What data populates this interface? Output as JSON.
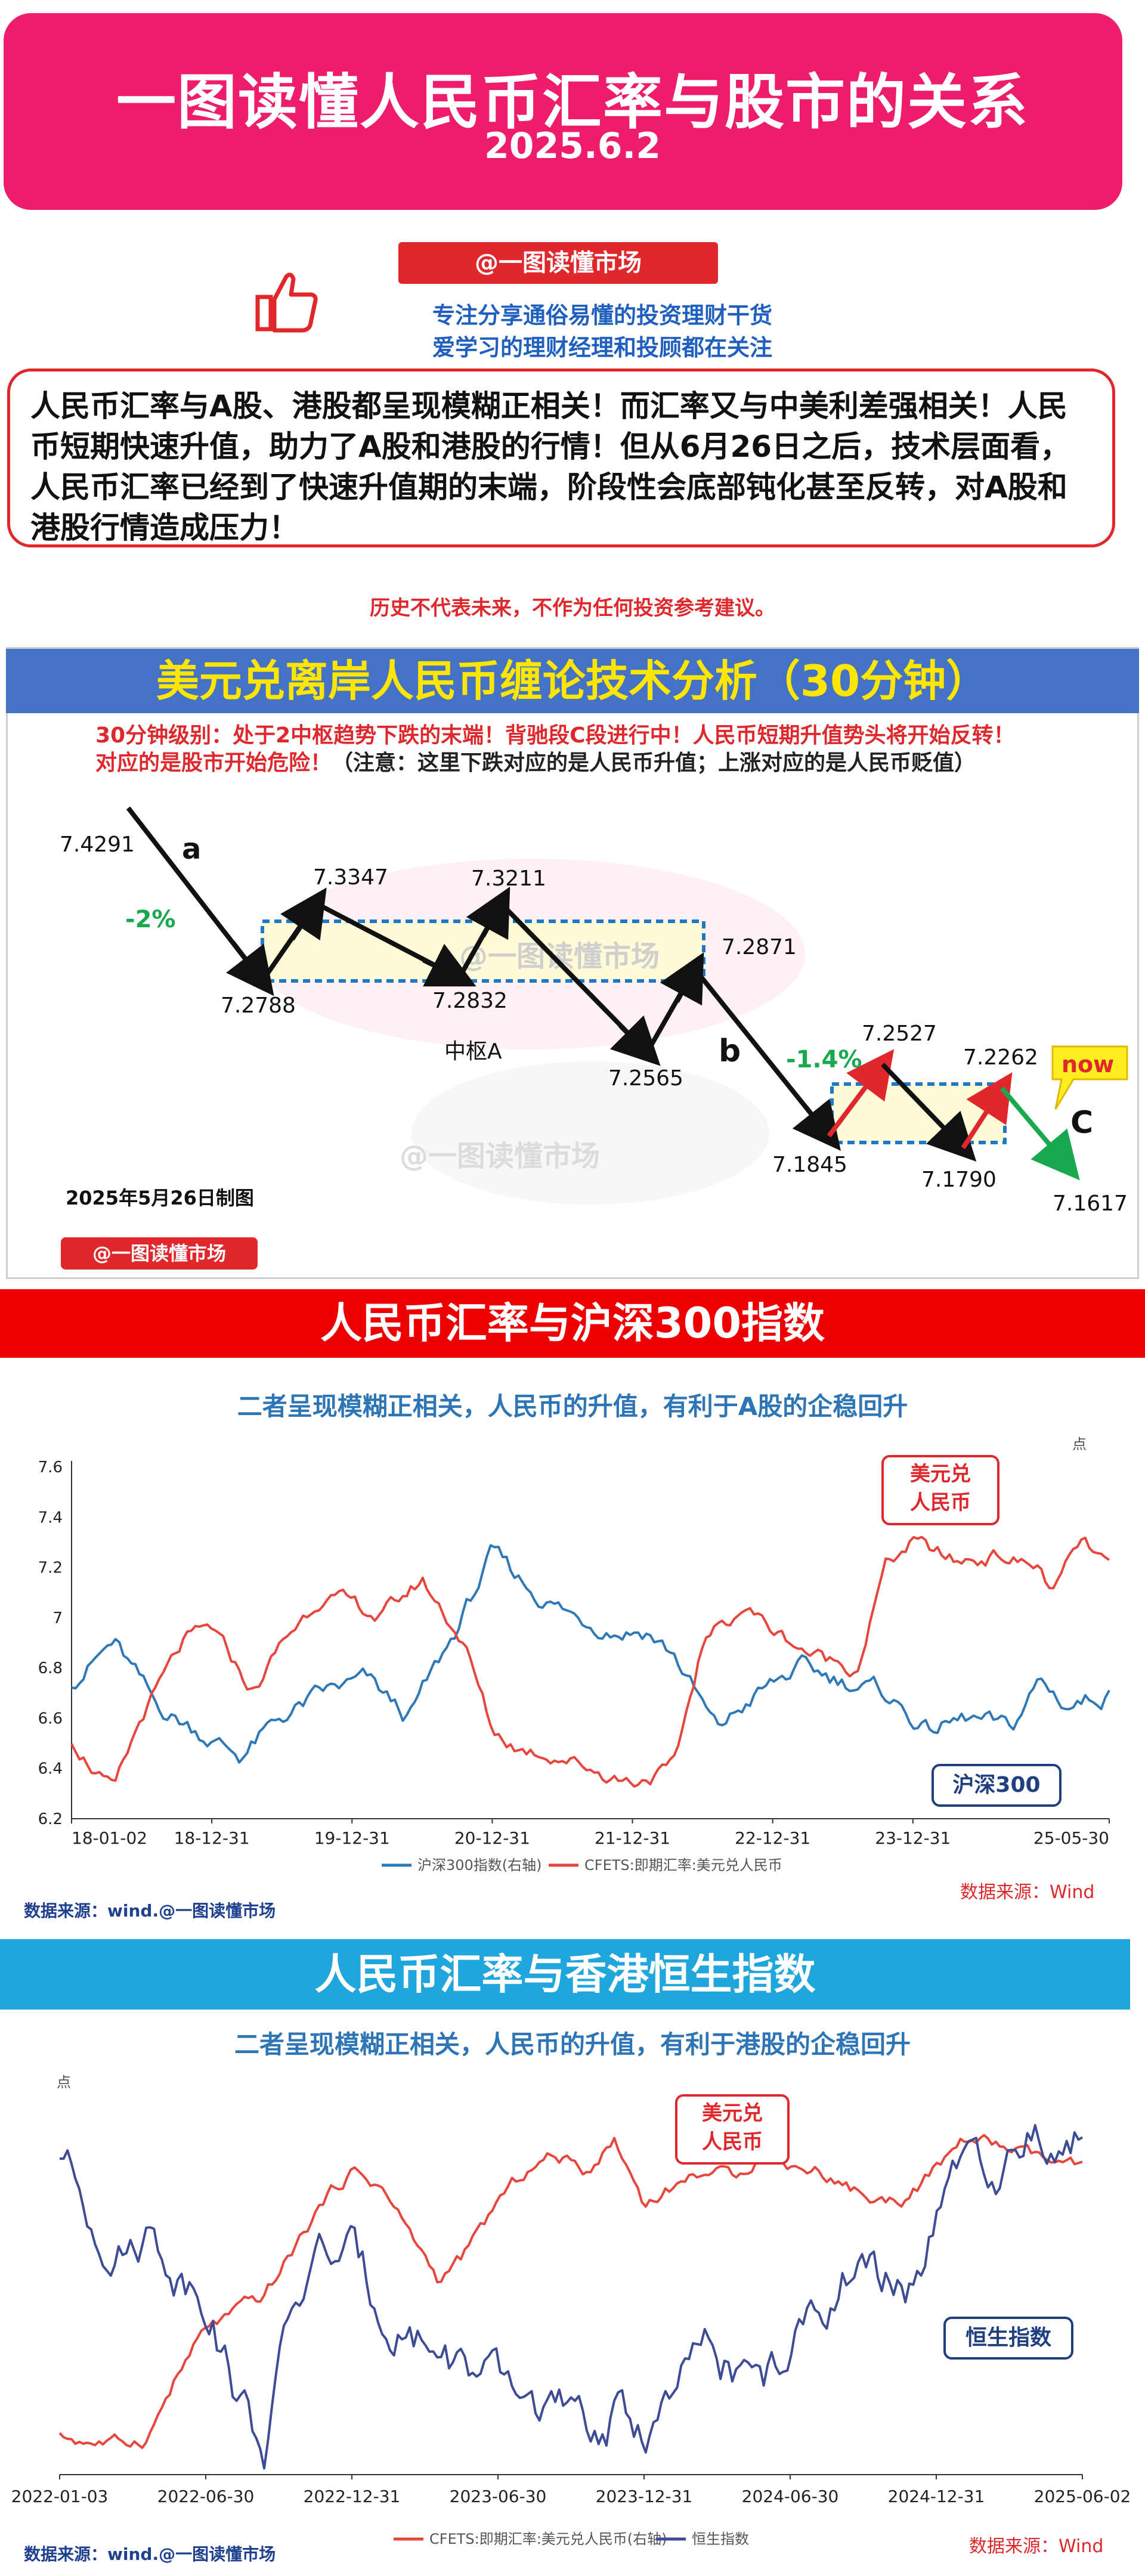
{
  "header": {
    "title": "一图读懂人民币汇率与股市的关系",
    "date": "2025.6.2"
  },
  "brand": {
    "label": "@一图读懂市场",
    "tagline1": "专注分享通俗易懂的投资理财干货",
    "tagline2": "爱学习的理财经理和投顾都在关注"
  },
  "intro": {
    "text": "人民币汇率与A股、港股都呈现模糊正相关！而汇率又与中美利差强相关！人民币短期快速升值，助力了A股和港股的行情！但从6月26日之后，技术层面看，人民币汇率已经到了快速升值期的末端，阶段性会底部钝化甚至反转，对A股和港股行情造成压力！"
  },
  "disclaimer": "历史不代表未来，不作为任何投资参考建议。",
  "section1": {
    "title": "美元兑离岸人民币缠论技术分析（30分钟）",
    "note1": "30分钟级别：处于2中枢趋势下跌的末端！背驰段C段进行中！人民币短期升值势头将开始反转！",
    "note2a": "对应的是股市开始危险！",
    "note2b": "（注意：这里下跌对应的是人民币升值；上涨对应的是人民币贬值）",
    "made_on": "2025年5月26日制图",
    "watermark": "@一图读懂市场",
    "labels": {
      "a": "a",
      "b": "b",
      "c": "C",
      "center_a": "中枢A",
      "now": "now",
      "pct1": "-2%",
      "pct2": "-1.4%"
    },
    "points": [
      "7.4291",
      "7.2788",
      "7.3347",
      "7.2832",
      "7.3211",
      "7.2565",
      "7.2871",
      "7.1845",
      "7.2527",
      "7.1790",
      "7.2262",
      "7.1617"
    ]
  },
  "section2": {
    "title": "人民币汇率与沪深300指数",
    "subtitle": "二者呈现模糊正相关，人民币的升值，有利于A股的企稳回升",
    "source_left": "数据来源：wind.@一图读懂市场",
    "source_right": "数据来源：Wind",
    "callout_usd": "美元兑\n人民币",
    "callout_idx": "沪深300",
    "unit": "点"
  },
  "section3": {
    "title": "人民币汇率与香港恒生指数",
    "subtitle": "二者呈现模糊正相关，人民币的升值，有利于港股的企稳回升",
    "source_left": "数据来源：wind.@一图读懂市场",
    "source_right": "数据来源：Wind",
    "callout_usd": "美元兑\n人民币",
    "callout_idx": "恒生指数",
    "unit": "点"
  },
  "colors": {
    "usd": "#e8463c",
    "csi": "#2e78b7",
    "hsi": "#3d4c94",
    "pink": "#ee1d6b"
  },
  "chart_data": [
    {
      "type": "line",
      "title": "人民币汇率与沪深300指数",
      "x_ticks": [
        "18-01-02",
        "18-12-31",
        "19-12-31",
        "20-12-31",
        "21-12-31",
        "22-12-31",
        "23-12-31",
        "25-05-30"
      ],
      "y_ticks": [
        "6.2",
        "6.4",
        "6.6",
        "6.8",
        "7",
        "7.2",
        "7.4",
        "7.6"
      ],
      "ylim": [
        6.2,
        7.6
      ],
      "legend": [
        "沪深300指数(右轴)",
        "CFETS:即期汇率:美元兑人民币"
      ],
      "series": [
        {
          "name": "CFETS:即期汇率:美元兑人民币",
          "x": [
            0,
            0.3,
            0.5,
            0.8,
            1,
            1.3,
            1.5,
            1.8,
            2,
            2.2,
            2.5,
            2.8,
            3,
            3.2,
            3.5,
            3.8,
            4,
            4.3,
            4.5,
            4.8,
            5,
            5.3,
            5.6,
            5.8,
            6,
            6.3,
            6.6,
            6.9,
            7,
            7.2,
            7.4
          ],
          "values": [
            6.52,
            6.3,
            6.6,
            6.9,
            6.95,
            6.7,
            6.9,
            7.1,
            7.05,
            7.0,
            7.15,
            6.9,
            6.55,
            6.48,
            6.45,
            6.38,
            6.35,
            6.4,
            6.9,
            7.05,
            6.95,
            6.85,
            6.8,
            7.2,
            7.3,
            7.22,
            7.25,
            7.2,
            7.1,
            7.3,
            7.2
          ]
        },
        {
          "name": "沪深300指数(右轴)",
          "x": [
            0,
            0.3,
            0.6,
            0.9,
            1.2,
            1.5,
            1.8,
            2.1,
            2.4,
            2.7,
            3,
            3.3,
            3.6,
            3.9,
            4.1,
            4.3,
            4.6,
            4.9,
            5.2,
            5.5,
            5.8,
            6.1,
            6.4,
            6.7,
            6.9,
            7.1,
            7.4
          ],
          "values": [
            6.75,
            6.9,
            6.65,
            6.55,
            6.45,
            6.6,
            6.7,
            6.75,
            6.6,
            6.9,
            7.25,
            7.1,
            7.0,
            6.95,
            6.95,
            6.85,
            6.55,
            6.7,
            6.8,
            6.75,
            6.7,
            6.55,
            6.6,
            6.55,
            6.75,
            6.65,
            6.7
          ]
        }
      ]
    },
    {
      "type": "line",
      "title": "人民币汇率与香港恒生指数",
      "x_ticks": [
        "2022-01-03",
        "2022-06-30",
        "2022-12-31",
        "2023-06-30",
        "2023-12-31",
        "2024-06-30",
        "2024-12-31",
        "2025-06-02"
      ],
      "legend": [
        "CFETS:即期汇率:美元兑人民币(右轴)",
        "恒生指数"
      ],
      "series": [
        {
          "name": "CFETS:即期汇率:美元兑人民币(右轴)",
          "x": [
            0,
            0.2,
            0.4,
            0.6,
            0.8,
            1,
            1.2,
            1.4,
            1.6,
            1.8,
            2,
            2.2,
            2.4,
            2.6,
            2.8,
            3,
            3.2,
            3.4,
            3.6,
            3.8,
            4,
            4.2,
            4.4,
            4.6,
            4.8,
            5,
            5.2,
            5.4,
            5.6,
            5.8,
            6,
            6.2,
            6.4,
            6.6,
            6.8,
            7
          ],
          "values": [
            6.36,
            6.35,
            6.34,
            6.36,
            6.55,
            6.7,
            6.75,
            6.8,
            6.95,
            7.1,
            7.2,
            7.15,
            7.0,
            6.85,
            6.95,
            7.1,
            7.2,
            7.25,
            7.2,
            7.3,
            7.1,
            7.15,
            7.2,
            7.18,
            7.25,
            7.22,
            7.2,
            7.15,
            7.1,
            7.12,
            7.2,
            7.3,
            7.28,
            7.25,
            7.22,
            7.2
          ]
        },
        {
          "name": "恒生指数",
          "x": [
            0,
            0.2,
            0.4,
            0.6,
            0.8,
            1,
            1.2,
            1.4,
            1.6,
            1.8,
            2,
            2.2,
            2.4,
            2.6,
            2.8,
            3,
            3.2,
            3.4,
            3.6,
            3.8,
            4,
            4.2,
            4.4,
            4.6,
            4.8,
            5,
            5.2,
            5.4,
            5.6,
            5.8,
            6,
            6.2,
            6.4,
            6.6,
            6.8,
            7
          ],
          "values": [
            23500,
            22000,
            21000,
            21500,
            20500,
            20000,
            17500,
            16000,
            19500,
            21000,
            20800,
            19500,
            19000,
            18500,
            18000,
            17500,
            17200,
            17000,
            16300,
            16800,
            16500,
            17200,
            18500,
            18000,
            17600,
            18400,
            19500,
            20500,
            20200,
            20000,
            21500,
            23500,
            22000,
            24000,
            23500,
            23800
          ]
        }
      ]
    }
  ]
}
